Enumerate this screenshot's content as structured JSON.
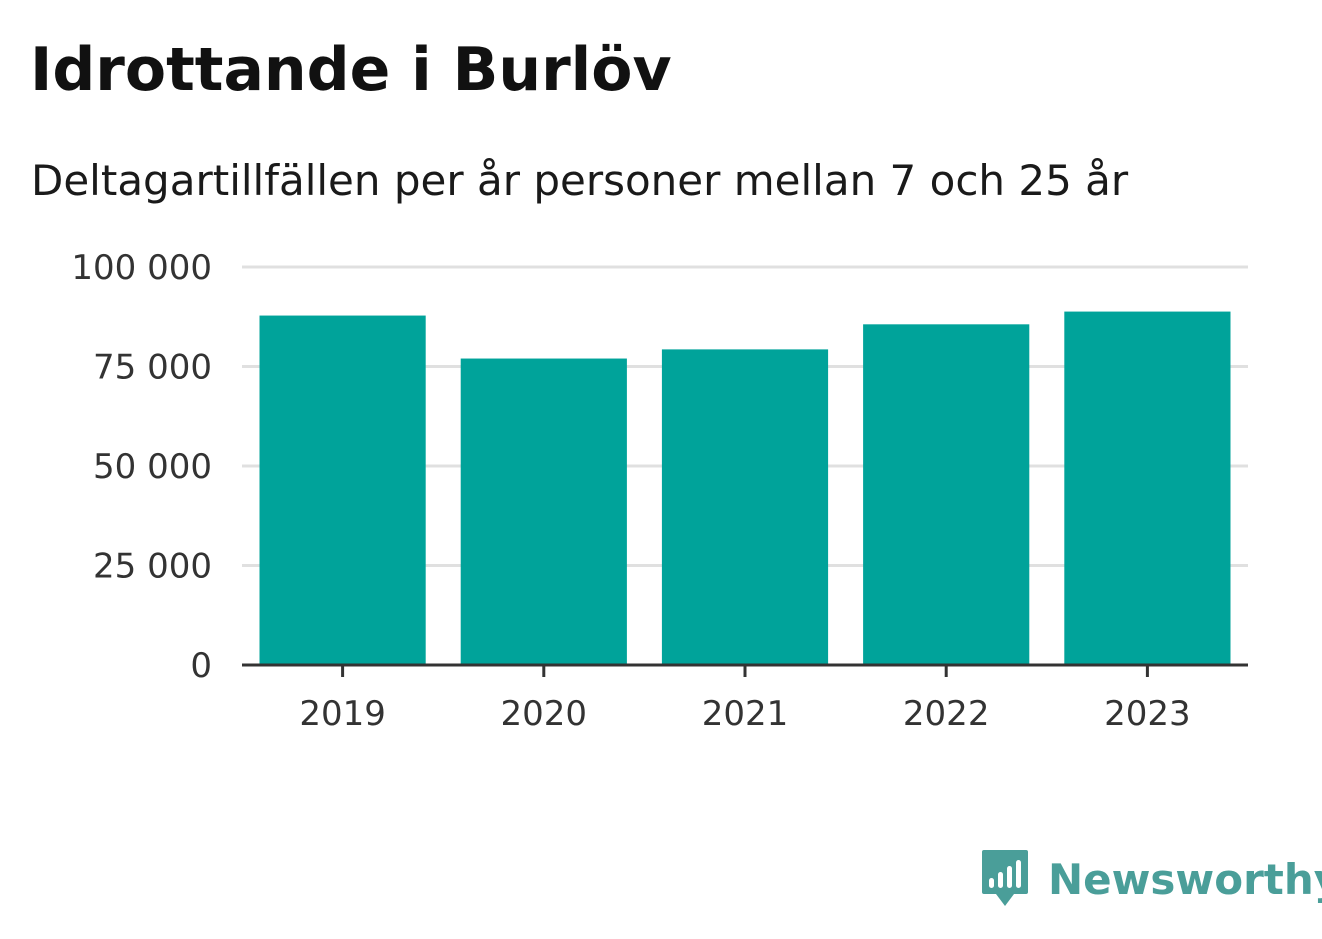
{
  "chart_data": {
    "type": "bar",
    "title": "Idrottande i Burlöv",
    "subtitle": "Deltagartillfällen per år personer mellan 7 och 25 år",
    "categories": [
      "2019",
      "2020",
      "2021",
      "2022",
      "2023"
    ],
    "values": [
      87800,
      77000,
      79300,
      85600,
      88800
    ],
    "ylim": [
      0,
      100000
    ],
    "y_ticks": [
      0,
      25000,
      50000,
      75000,
      100000
    ],
    "y_tick_labels": [
      "0",
      "25 000",
      "50 000",
      "75 000",
      "100 000"
    ],
    "grid": true,
    "bar_color": "#00a39a",
    "grid_color": "#e0e0e0",
    "axis_color": "#333333"
  },
  "logo": {
    "text": "Newsworthy",
    "icon": "newsworthy-chart-bubble-icon",
    "color": "#4a9e99"
  }
}
